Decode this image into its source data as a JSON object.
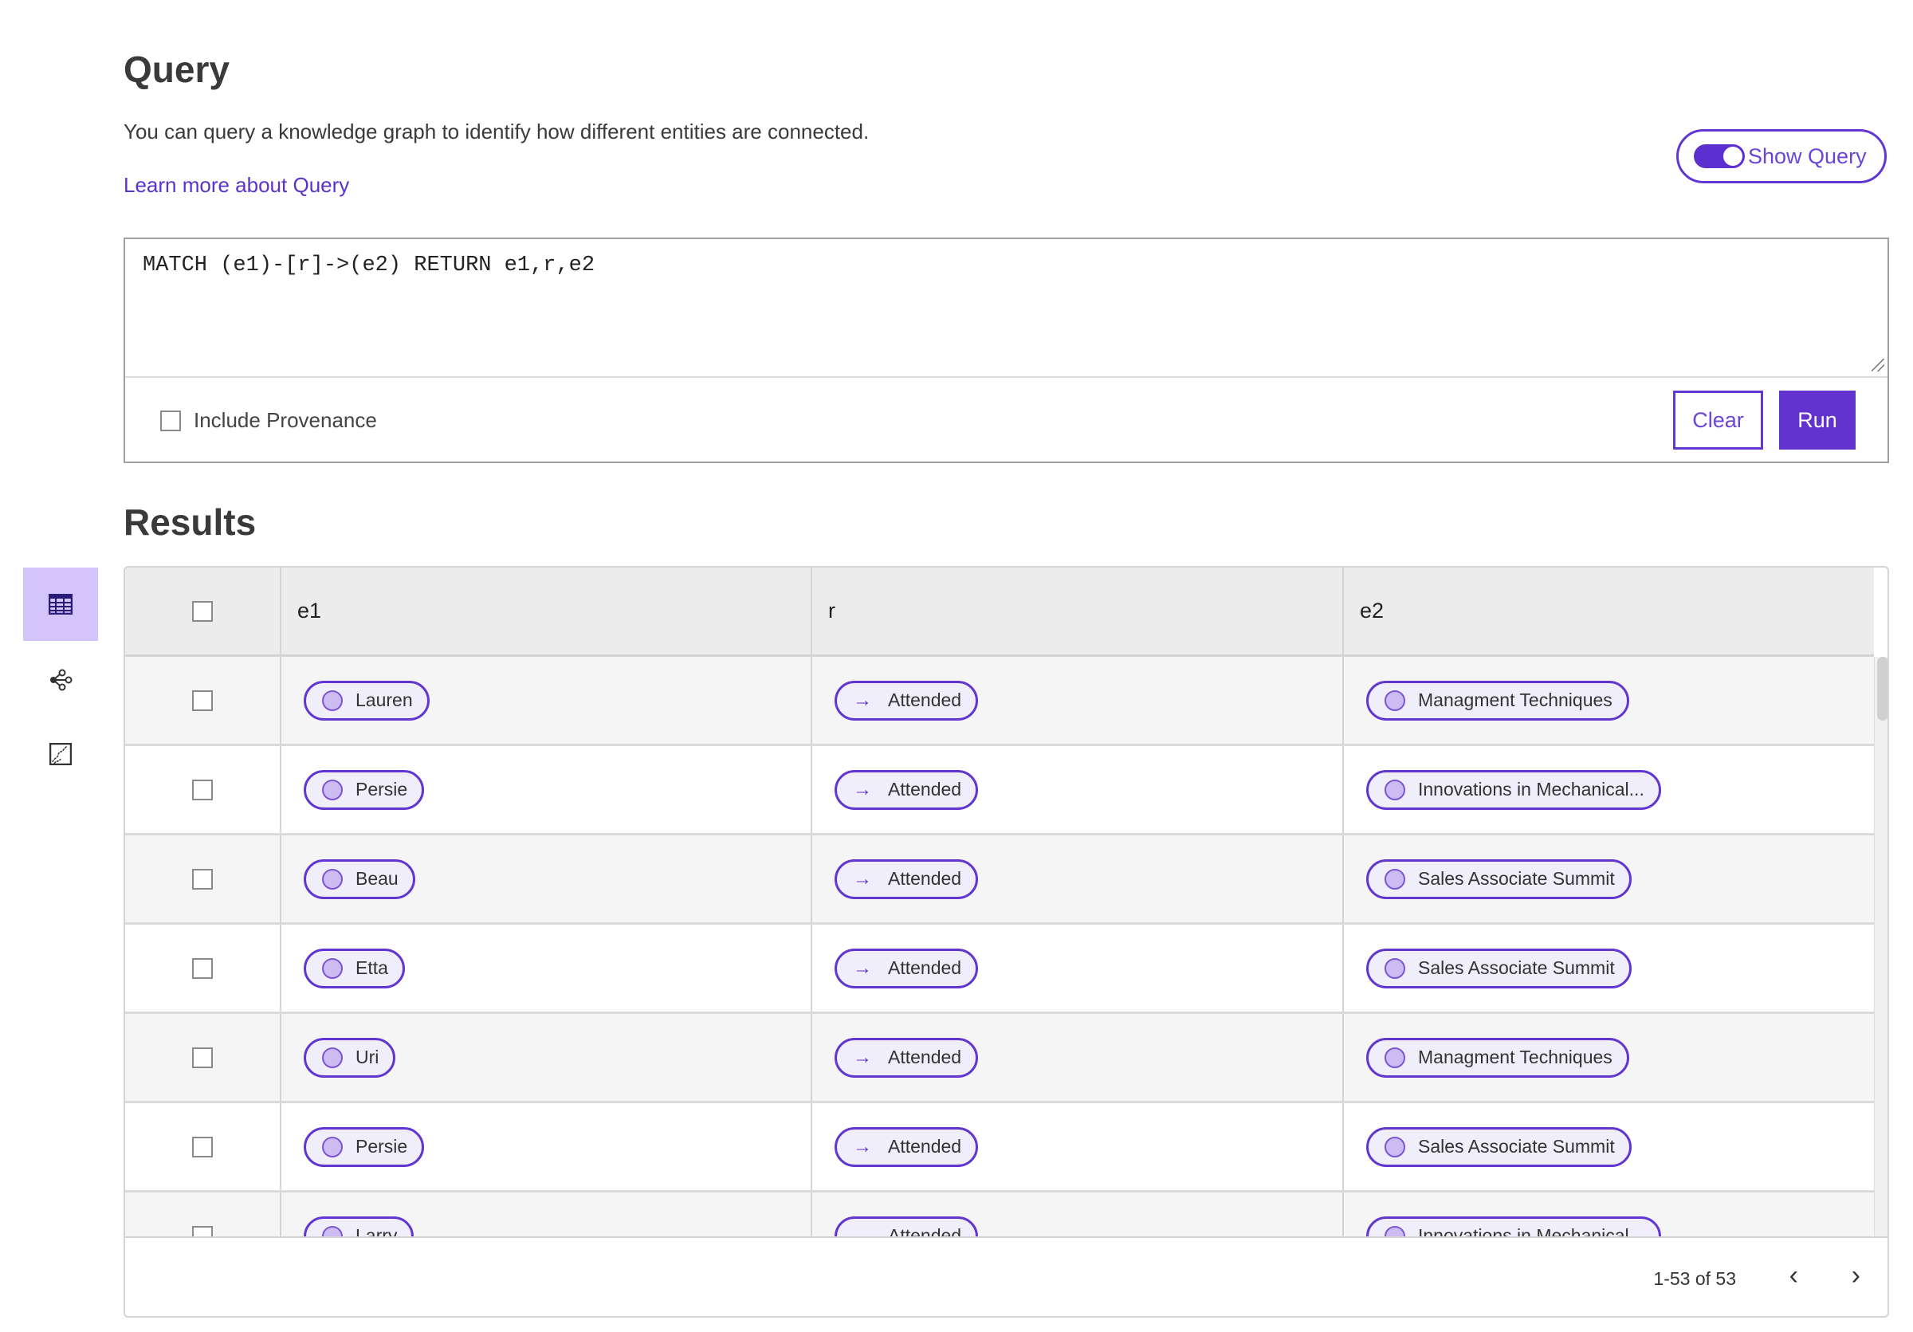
{
  "header": {
    "title": "Query",
    "description": "You can query a knowledge graph to identify how different entities are connected.",
    "learn_more": "Learn more about Query",
    "show_query_label": "Show Query",
    "show_query_on": true
  },
  "query": {
    "text": "MATCH (e1)-[r]->(e2) RETURN e1,r,e2",
    "include_provenance_label": "Include Provenance",
    "include_provenance_checked": false,
    "clear_label": "Clear",
    "run_label": "Run"
  },
  "results": {
    "title": "Results",
    "views": [
      "table-icon",
      "graph-icon",
      "chart-icon"
    ],
    "active_view": "table",
    "columns": [
      "e1",
      "r",
      "e2"
    ],
    "rows": [
      {
        "e1": "Lauren",
        "r": "Attended",
        "e2": "Managment Techniques"
      },
      {
        "e1": "Persie",
        "r": "Attended",
        "e2": "Innovations in Mechanical..."
      },
      {
        "e1": "Beau",
        "r": "Attended",
        "e2": "Sales Associate Summit"
      },
      {
        "e1": "Etta",
        "r": "Attended",
        "e2": "Sales Associate Summit"
      },
      {
        "e1": "Uri",
        "r": "Attended",
        "e2": "Managment Techniques"
      },
      {
        "e1": "Persie",
        "r": "Attended",
        "e2": "Sales Associate Summit"
      },
      {
        "e1": "Larry",
        "r": "Attended",
        "e2": "Innovations in Mechanical..."
      }
    ],
    "pagination": {
      "range": "1-53 of 53",
      "prev": "‹",
      "next": "›"
    }
  },
  "colors": {
    "accent": "#6333cf",
    "active_view_bg": "#d3c4fb",
    "pill_bg": "#f0eefa"
  }
}
